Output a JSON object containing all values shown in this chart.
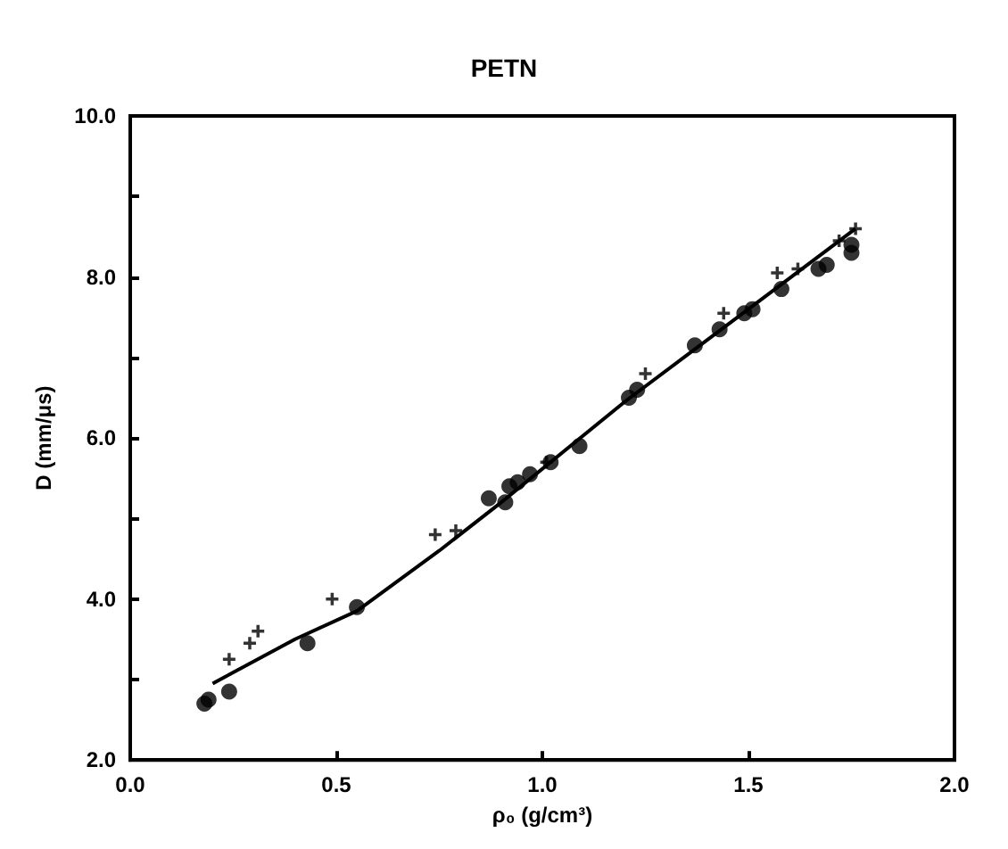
{
  "chart_data": {
    "type": "scatter",
    "title": "PETN",
    "xlabel": "ρ₀ (g/cm³)",
    "ylabel": "D (mm/μs)",
    "xlim": [
      0,
      2
    ],
    "xticks": [
      {
        "value": 0,
        "label": "0.0"
      },
      0.5,
      {
        "value": 1,
        "label": "1.0"
      },
      1.5,
      {
        "value": 2,
        "label": "2.0"
      }
    ],
    "ylim": [
      2,
      10
    ],
    "yticks": [
      {
        "value": 2,
        "label": "2.0"
      },
      {
        "value": 3,
        "label": null
      },
      {
        "value": 4,
        "label": "4.0"
      },
      {
        "value": 5,
        "label": null
      },
      {
        "value": 6,
        "label": "6.0"
      },
      {
        "value": 7,
        "label": null
      },
      {
        "value": 8,
        "label": "8.0"
      },
      {
        "value": 9,
        "label": null
      },
      {
        "value": 10,
        "label": "10.0"
      }
    ],
    "grid": false,
    "series": [
      {
        "color": "#000000",
        "marker": "circle",
        "x": [
          0.18,
          0.19,
          0.24,
          0.43,
          0.55,
          0.87,
          0.91,
          0.92,
          0.94,
          0.97,
          1.02,
          1.09,
          1.21,
          1.23,
          1.37,
          1.43,
          1.49,
          1.51,
          1.58,
          1.67,
          1.69,
          1.75,
          1.75
        ],
        "values": [
          2.7,
          2.75,
          2.85,
          3.45,
          3.9,
          5.25,
          5.2,
          5.4,
          5.45,
          5.55,
          5.7,
          5.9,
          6.5,
          6.6,
          7.15,
          7.35,
          7.55,
          7.6,
          7.85,
          8.1,
          8.15,
          8.3,
          8.4
        ]
      },
      {
        "color": "#000000",
        "marker": "cross",
        "x": [
          0.24,
          0.29,
          0.31,
          0.49,
          0.74,
          0.79,
          1.01,
          1.25,
          1.44,
          1.57,
          1.62,
          1.72,
          1.76
        ],
        "values": [
          3.25,
          3.45,
          3.6,
          4.0,
          4.8,
          4.85,
          5.7,
          6.8,
          7.55,
          8.05,
          8.1,
          8.45,
          8.6
        ]
      },
      {
        "type": "line",
        "color": "#000000",
        "marker": "none",
        "line_style": "solid",
        "x": [
          0.2,
          0.4,
          0.55,
          0.75,
          0.9,
          1.2,
          1.5,
          1.76
        ],
        "values": [
          2.95,
          3.5,
          3.85,
          4.6,
          5.2,
          6.45,
          7.6,
          8.6
        ]
      }
    ]
  }
}
